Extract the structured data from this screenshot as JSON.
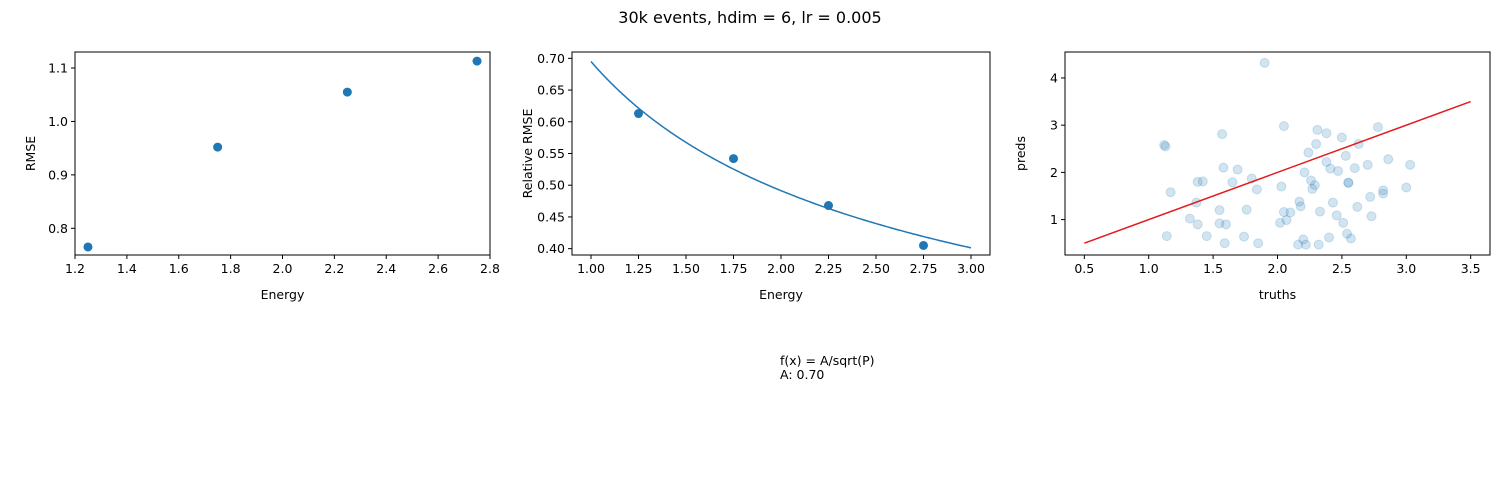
{
  "figure": {
    "suptitle": "30k events, hdim = 6, lr = 0.005",
    "fit_note": {
      "formula": "f(x) = A/sqrt(P)",
      "param": "A: 0.70"
    }
  },
  "chart_data": [
    {
      "type": "scatter",
      "title": "",
      "xlabel": "Energy",
      "ylabel": "RMSE",
      "xlim": [
        1.2,
        2.8
      ],
      "ylim": [
        0.75,
        1.13
      ],
      "xticks": [
        1.2,
        1.4,
        1.6,
        1.8,
        2.0,
        2.2,
        2.4,
        2.6,
        2.8
      ],
      "xtick_labels": [
        "1.2",
        "1.4",
        "1.6",
        "1.8",
        "2.0",
        "2.2",
        "2.4",
        "2.6",
        "2.8"
      ],
      "yticks": [
        0.8,
        0.9,
        1.0,
        1.1
      ],
      "ytick_labels": [
        "0.8",
        "0.9",
        "1.0",
        "1.1"
      ],
      "grid": false,
      "color": "#1f77b4",
      "x": [
        1.25,
        1.75,
        2.25,
        2.75
      ],
      "y": [
        0.765,
        0.952,
        1.055,
        1.113
      ]
    },
    {
      "type": "line+scatter",
      "title": "",
      "xlabel": "Energy",
      "ylabel": "Relative RMSE",
      "xlim": [
        0.9,
        3.1
      ],
      "ylim": [
        0.39,
        0.71
      ],
      "xticks": [
        1.0,
        1.25,
        1.5,
        1.75,
        2.0,
        2.25,
        2.5,
        2.75,
        3.0
      ],
      "xtick_labels": [
        "1.00",
        "1.25",
        "1.50",
        "1.75",
        "2.00",
        "2.25",
        "2.50",
        "2.75",
        "3.00"
      ],
      "yticks": [
        0.4,
        0.45,
        0.5,
        0.55,
        0.6,
        0.65,
        0.7
      ],
      "ytick_labels": [
        "0.40",
        "0.45",
        "0.50",
        "0.55",
        "0.60",
        "0.65",
        "0.70"
      ],
      "grid": false,
      "color": "#1f77b4",
      "points": {
        "x": [
          1.25,
          1.75,
          2.25,
          2.75
        ],
        "y": [
          0.613,
          0.542,
          0.468,
          0.405
        ]
      },
      "fit": {
        "A": 0.695,
        "x_range": [
          1.0,
          3.0
        ]
      }
    },
    {
      "type": "scatter",
      "title": "",
      "xlabel": "truths",
      "ylabel": "preds",
      "xlim": [
        0.35,
        3.65
      ],
      "ylim": [
        0.25,
        4.55
      ],
      "xticks": [
        0.5,
        1.0,
        1.5,
        2.0,
        2.5,
        3.0,
        3.5
      ],
      "xtick_labels": [
        "0.5",
        "1.0",
        "1.5",
        "2.0",
        "2.5",
        "3.0",
        "3.5"
      ],
      "yticks": [
        1,
        2,
        3,
        4
      ],
      "ytick_labels": [
        "1",
        "2",
        "3",
        "4"
      ],
      "grid": false,
      "point_color": "#1f77b4",
      "point_alpha": 0.2,
      "line_color": "#e41a1c",
      "line": {
        "x": [
          0.5,
          3.5
        ],
        "y": [
          0.5,
          3.5
        ]
      },
      "x": [
        1.12,
        1.13,
        1.14,
        1.17,
        1.32,
        1.37,
        1.38,
        1.38,
        1.42,
        1.45,
        1.55,
        1.55,
        1.57,
        1.58,
        1.59,
        1.6,
        1.65,
        1.69,
        1.74,
        1.76,
        1.8,
        1.84,
        1.85,
        1.9,
        2.02,
        2.03,
        2.05,
        2.07,
        2.1,
        2.16,
        2.17,
        2.18,
        2.2,
        2.21,
        2.22,
        2.24,
        2.26,
        2.27,
        2.29,
        2.3,
        2.31,
        2.32,
        2.33,
        2.38,
        2.38,
        2.4,
        2.41,
        2.43,
        2.46,
        2.47,
        2.5,
        2.51,
        2.53,
        2.54,
        2.55,
        2.57,
        2.6,
        2.62,
        2.63,
        2.7,
        2.72,
        2.73,
        2.78,
        2.82,
        2.82,
        2.86,
        3.0,
        3.03,
        2.55,
        2.05
      ],
      "y": [
        2.58,
        2.55,
        0.65,
        1.58,
        1.02,
        1.36,
        0.9,
        1.8,
        1.81,
        0.65,
        1.2,
        0.92,
        2.81,
        2.1,
        0.5,
        0.9,
        1.79,
        2.06,
        0.64,
        1.21,
        1.87,
        1.64,
        0.5,
        4.32,
        0.93,
        1.7,
        2.98,
        0.99,
        1.15,
        0.47,
        1.38,
        1.28,
        0.58,
        2.0,
        0.47,
        2.42,
        1.83,
        1.65,
        1.73,
        2.6,
        2.9,
        0.47,
        1.17,
        2.83,
        2.22,
        0.62,
        2.08,
        1.36,
        1.09,
        2.03,
        2.74,
        0.93,
        2.35,
        0.7,
        1.78,
        0.6,
        2.09,
        1.27,
        2.6,
        2.16,
        1.48,
        1.07,
        2.96,
        1.62,
        1.55,
        2.28,
        1.68,
        2.16,
        1.78,
        1.16
      ]
    }
  ]
}
